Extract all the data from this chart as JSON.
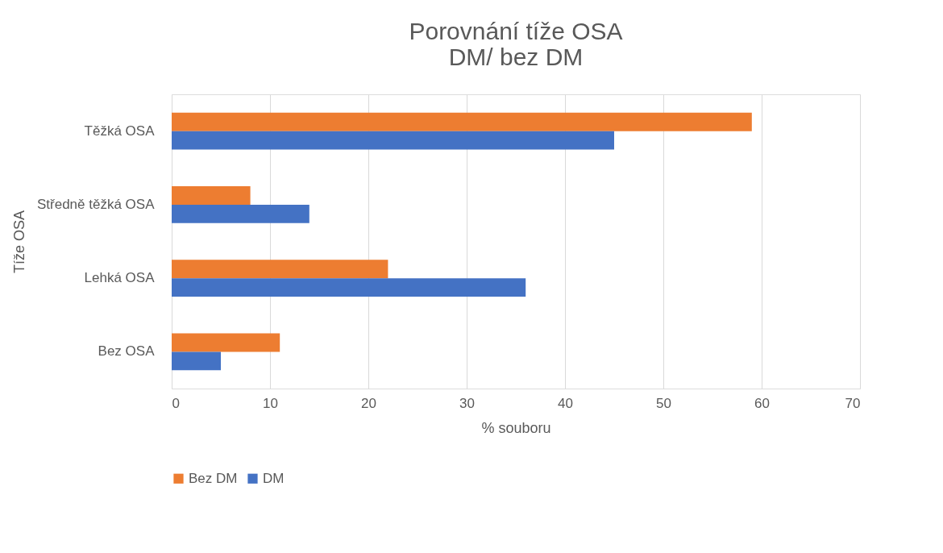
{
  "chart_data": {
    "type": "bar",
    "orientation": "horizontal",
    "title": "Porovnání tíže OSA\nDM/ bez DM",
    "xlabel": "% souboru",
    "ylabel": "Tíže OSA",
    "categories": [
      "Těžká OSA",
      "Středně těžká OSA",
      "Lehká OSA",
      "Bez OSA"
    ],
    "series": [
      {
        "name": "Bez DM",
        "color": "#ed7d31",
        "values": [
          59,
          8,
          22,
          11
        ]
      },
      {
        "name": "DM",
        "color": "#4472c4",
        "values": [
          45,
          14,
          36,
          5
        ]
      }
    ],
    "xlim": [
      0,
      70
    ],
    "xticks": [
      0,
      10,
      20,
      30,
      40,
      50,
      60,
      70
    ],
    "grid": "x",
    "legend": "bottom"
  }
}
